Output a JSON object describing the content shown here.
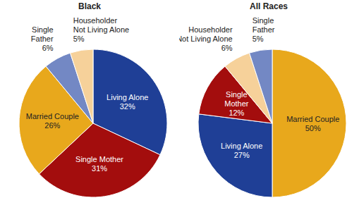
{
  "chart_data": [
    {
      "type": "pie",
      "title": "Black",
      "categories": [
        "Living Alone",
        "Single Mother",
        "Married Couple",
        "Single Father",
        "Householder Not Living Alone"
      ],
      "values": [
        32,
        31,
        26,
        6,
        5
      ],
      "value_labels": [
        "32%",
        "31%",
        "26%",
        "6%",
        "5%"
      ],
      "colors": [
        "#1f3f96",
        "#a30d0d",
        "#e8a81c",
        "#7388c4",
        "#f6d19a"
      ]
    },
    {
      "type": "pie",
      "title": "All Races",
      "categories": [
        "Married Couple",
        "Living Alone",
        "Single Mother",
        "Householder Not Living Alone",
        "Single Father"
      ],
      "values": [
        50,
        27,
        12,
        6,
        5
      ],
      "value_labels": [
        "50%",
        "27%",
        "12%",
        "6%",
        "5%"
      ],
      "colors": [
        "#e8a81c",
        "#1f3f96",
        "#a30d0d",
        "#f6d19a",
        "#7388c4"
      ]
    }
  ]
}
